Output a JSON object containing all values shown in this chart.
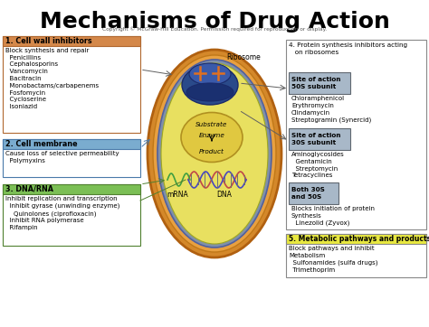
{
  "title": "Mechanisms of Drug Action",
  "copyright": "Copyright © McGraw-Hill Education. Permission required for reproduction or display.",
  "bg_color": "#ffffff",
  "title_fontsize": 18,
  "box1_title": "1. Cell wall inhibitors",
  "box1_title_bg": "#d4884a",
  "box1_text": "Block synthesis and repair\n  Penicillins\n  Cephalosporins\n  Vancomycin\n  Bacitracin\n  Monobactams/carbapenems\n  Fosfomycin\n  Cycloserine\n  Isoniazid",
  "box2_title": "2. Cell membrane",
  "box2_title_bg": "#7aaccf",
  "box2_text": "Cause loss of selective permeability\n  Polymyxins",
  "box3_title": "3. DNA/RNA",
  "box3_title_bg": "#7bbf55",
  "box3_text": "Inhibit replication and transcription\n  Inhibit gyrase (unwinding enzyme)\n    Quinolones (ciprofloxacin)\n  Inhibit RNA polymerase\n  Rifampin",
  "box4_title": "4. Protein synthesis inhibitors acting\n   on ribosomes",
  "site50s_title": "Site of action\n50S subunit",
  "site50s_bg": "#a8b8c8",
  "site50s_text": "Chloramphenicol\nErythromycin\nClindamycin\nStreptogramin (Synercid)",
  "site30s_title": "Site of action\n30S subunit",
  "site30s_bg": "#a8b8c8",
  "site30s_text": "Aminoglycosides\n  Gentamicin\n  Streptomycin\nTetracyclines",
  "both_title": "Both 30S\nand 50S",
  "both_bg": "#a8b8c8",
  "both_text": "Blocks initiation of protein\nSynthesis\n  Linezolid (Zyvox)",
  "box5_title": "5. Metabolic pathways and products",
  "box5_title_bg": "#e8e840",
  "box5_text": "Block pathways and inhibit\nMetabolism\n  Sulfonamides (sulfa drugs)\n  Trimethoprim",
  "cell_outer_color": "#d4882a",
  "cell_inner_color": "#c8b040",
  "cell_fill_color": "#e8e060",
  "ribosome_label": "Ribosome",
  "substrate_label": "Substrate",
  "enzyme_label": "Enzyme",
  "product_label": "Product",
  "mrna_label": "mRNA",
  "dna_label": "DNA"
}
